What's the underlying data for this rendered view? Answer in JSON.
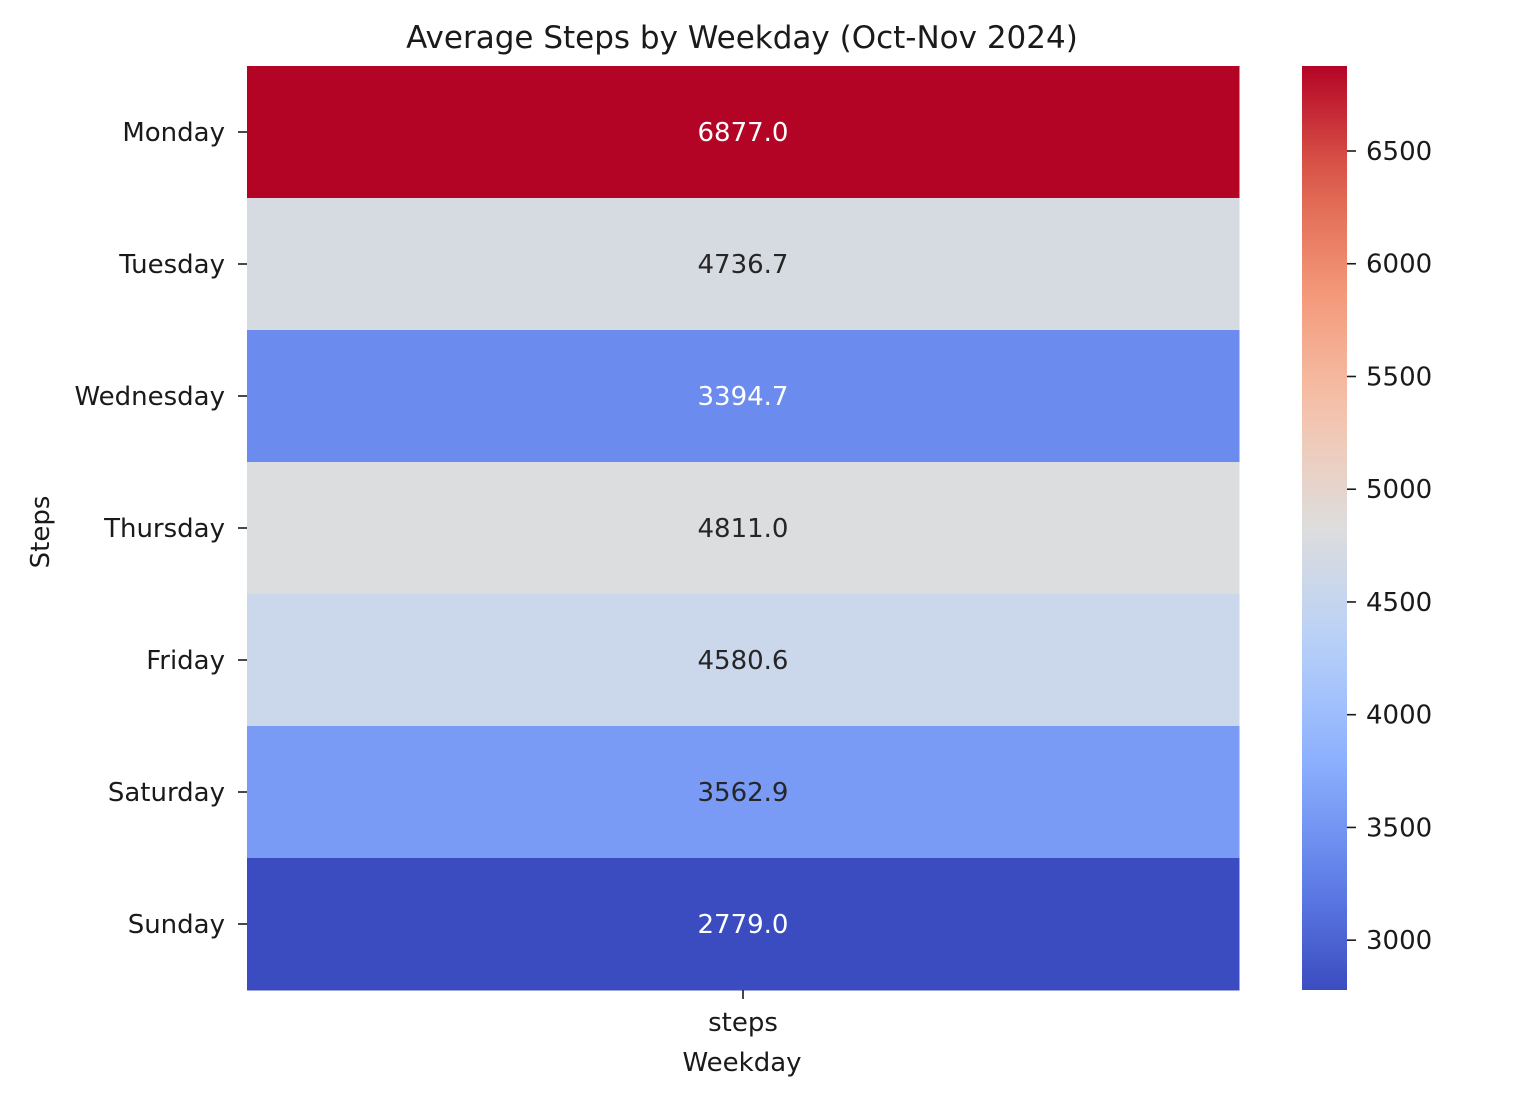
{
  "chart_data": {
    "type": "heatmap",
    "title": "Average Steps by Weekday (Oct-Nov 2024)",
    "xlabel": "Weekday",
    "ylabel": "Steps",
    "columns": [
      "steps"
    ],
    "rows": [
      "Monday",
      "Tuesday",
      "Wednesday",
      "Thursday",
      "Friday",
      "Saturday",
      "Sunday"
    ],
    "values": [
      [
        6877.0
      ],
      [
        4736.7
      ],
      [
        3394.7
      ],
      [
        4811.0
      ],
      [
        4580.6
      ],
      [
        3562.9
      ],
      [
        2779.0
      ]
    ],
    "value_format": "0.0",
    "colormap": "coolwarm",
    "colorbar": {
      "min": 2779.0,
      "max": 6877.0,
      "ticks": [
        3000,
        3500,
        4000,
        4500,
        5000,
        5500,
        6000,
        6500
      ]
    }
  }
}
